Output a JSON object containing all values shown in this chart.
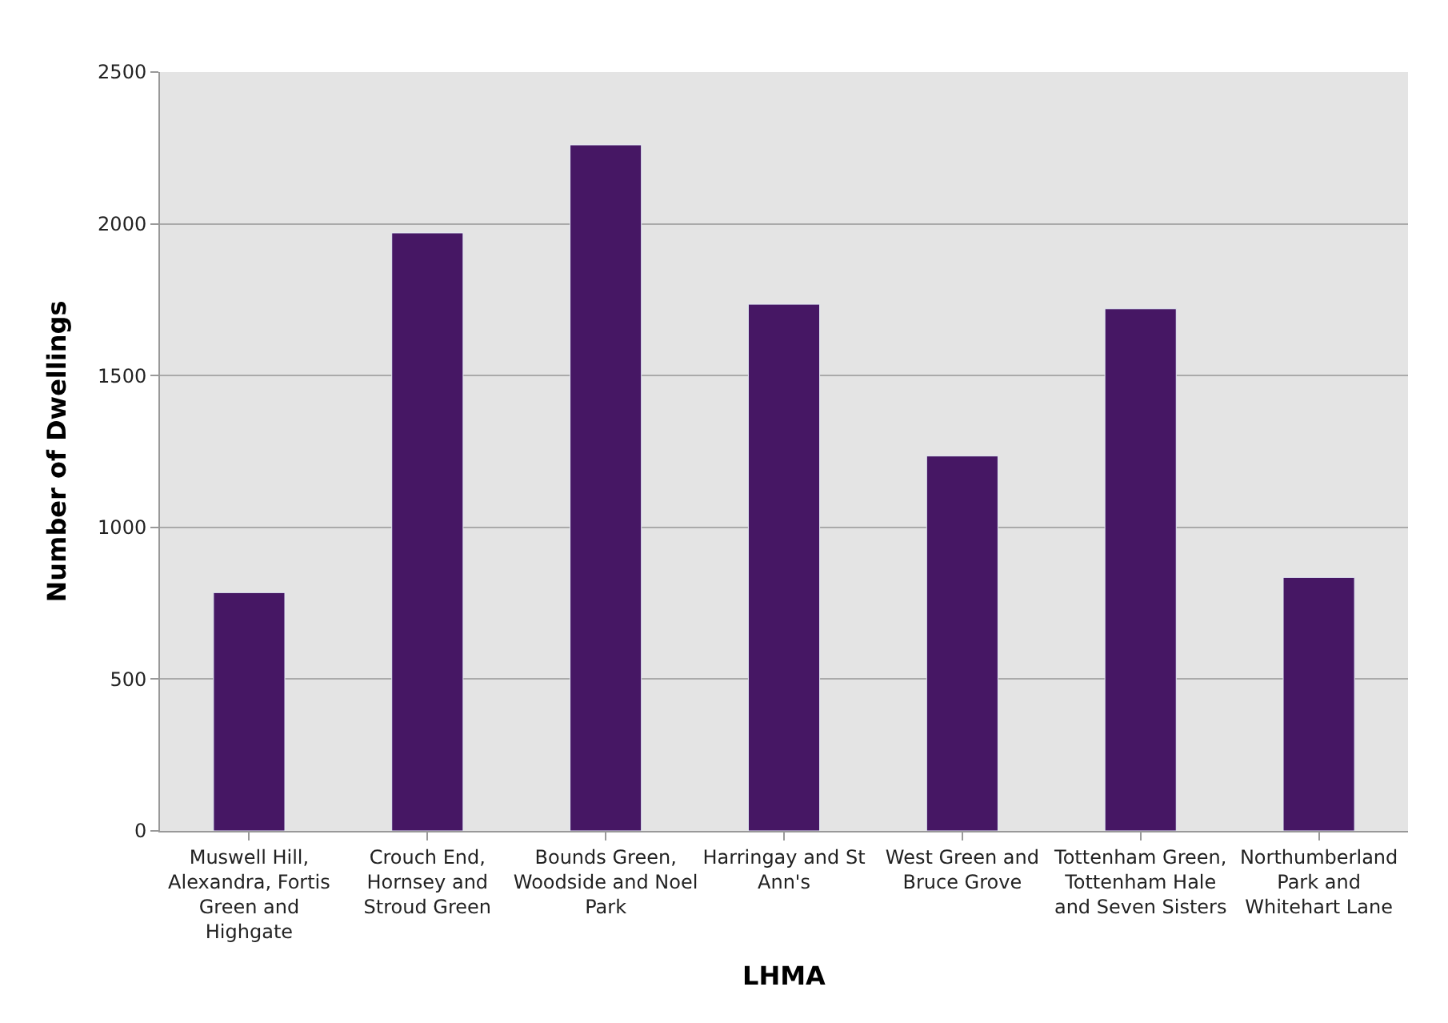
{
  "chart_data": {
    "type": "bar",
    "xlabel": "LHMA",
    "ylabel": "Number of Dwellings",
    "categories": [
      "Muswell Hill, Alexandra, Fortis Green and Highgate",
      "Crouch End, Hornsey and Stroud Green",
      "Bounds Green, Woodside and Noel Park",
      "Harringay and St Ann's",
      "West Green and Bruce Grove",
      "Tottenham Green, Tottenham Hale and Seven Sisters",
      "Northumberland Park and Whitehart Lane"
    ],
    "values": [
      785,
      1970,
      2260,
      1735,
      1235,
      1720,
      835
    ],
    "color": "#461764",
    "ylim": [
      0,
      2500
    ],
    "yticks": [
      0,
      500,
      1000,
      1500,
      2000,
      2500
    ],
    "grid": "y"
  }
}
